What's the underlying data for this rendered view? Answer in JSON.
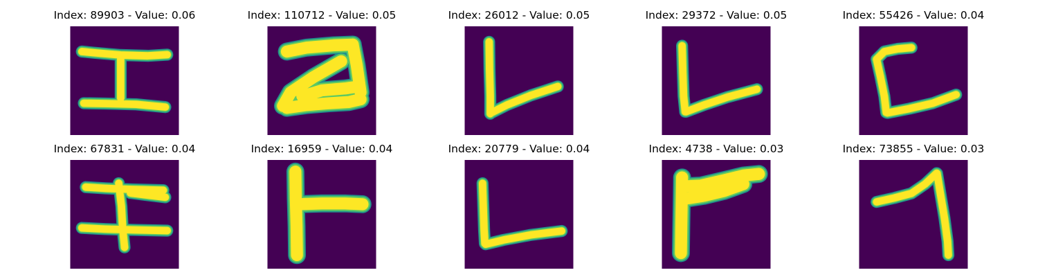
{
  "colors": {
    "background": "#440154",
    "stroke": "#FDE725",
    "edge_outer": "#21918C",
    "edge_inner": "#5EC962"
  },
  "panels": [
    {
      "index_label": "Index: 89903 - Value: 0.06",
      "glyph": "i-beam"
    },
    {
      "index_label": "Index: 110712 - Value: 0.05",
      "glyph": "hook-stroke"
    },
    {
      "index_label": "Index: 26012 - Value: 0.05",
      "glyph": "l-stroke"
    },
    {
      "index_label": "Index: 29372 - Value: 0.05",
      "glyph": "l-stroke"
    },
    {
      "index_label": "Index: 55426 - Value: 0.04",
      "glyph": "c-bracket"
    },
    {
      "index_label": "Index: 67831 - Value: 0.04",
      "glyph": "cross-beam"
    },
    {
      "index_label": "Index: 16959 - Value: 0.04",
      "glyph": "t-stroke"
    },
    {
      "index_label": "Index: 20779 - Value: 0.04",
      "glyph": "l-stroke"
    },
    {
      "index_label": "Index: 4738 - Value: 0.03",
      "glyph": "flag-stroke"
    },
    {
      "index_label": "Index: 73855 - Value: 0.03",
      "glyph": "hook-down"
    }
  ]
}
